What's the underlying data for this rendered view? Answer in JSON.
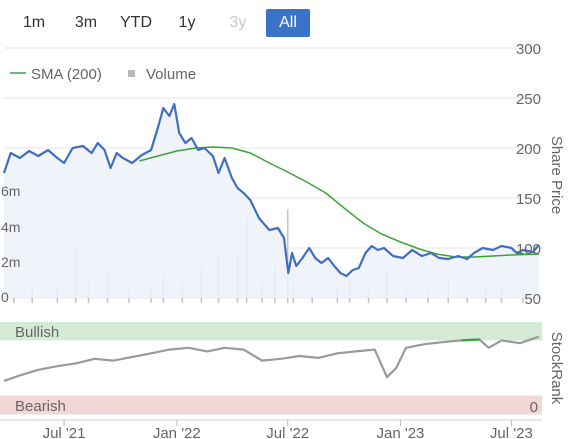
{
  "range_buttons": [
    {
      "label": "1m",
      "state": "normal"
    },
    {
      "label": "3m",
      "state": "normal"
    },
    {
      "label": "YTD",
      "state": "normal"
    },
    {
      "label": "1y",
      "state": "normal"
    },
    {
      "label": "3y",
      "state": "disabled"
    },
    {
      "label": "All",
      "state": "active"
    }
  ],
  "chart_data": [
    {
      "type": "line",
      "legend": [
        {
          "label": "SMA (200)",
          "color": "#3aa33a",
          "marker": "line"
        },
        {
          "label": "Volume",
          "color": "#b8b8c0",
          "marker": "square"
        }
      ],
      "y_right_label": "Share Price",
      "y_right_ticks": [
        50,
        100,
        150,
        200,
        250,
        300
      ],
      "ylim": [
        50,
        300
      ],
      "y_left_ticks": [
        "0",
        "2m",
        "4m",
        "6m"
      ],
      "volume_lim": [
        0,
        8000000
      ],
      "xlim": [
        "2021-03-25",
        "2023-08-20"
      ],
      "x_ticks": [
        {
          "date": "2021-07-01",
          "label": "Jul '21"
        },
        {
          "date": "2022-01-01",
          "label": "Jan '22"
        },
        {
          "date": "2022-07-01",
          "label": "Jul '22"
        },
        {
          "date": "2023-01-01",
          "label": "Jan '23"
        },
        {
          "date": "2023-07-01",
          "label": "Jul '23"
        }
      ],
      "series": [
        {
          "colors": {
            "line": "#3f6fc0",
            "fill": "#eef1fa"
          },
          "points": [
            [
              "2021-03-25",
              175
            ],
            [
              "2021-04-05",
              195
            ],
            [
              "2021-04-20",
              190
            ],
            [
              "2021-05-05",
              197
            ],
            [
              "2021-05-20",
              192
            ],
            [
              "2021-06-05",
              198
            ],
            [
              "2021-06-20",
              190
            ],
            [
              "2021-07-01",
              185
            ],
            [
              "2021-07-15",
              200
            ],
            [
              "2021-08-01",
              202
            ],
            [
              "2021-08-15",
              195
            ],
            [
              "2021-08-25",
              205
            ],
            [
              "2021-09-05",
              198
            ],
            [
              "2021-09-15",
              180
            ],
            [
              "2021-09-25",
              195
            ],
            [
              "2021-10-05",
              190
            ],
            [
              "2021-10-20",
              185
            ],
            [
              "2021-11-05",
              193
            ],
            [
              "2021-11-20",
              198
            ],
            [
              "2021-12-01",
              220
            ],
            [
              "2021-12-10",
              240
            ],
            [
              "2021-12-20",
              232
            ],
            [
              "2021-12-28",
              244
            ],
            [
              "2022-01-05",
              215
            ],
            [
              "2022-01-15",
              205
            ],
            [
              "2022-01-25",
              210
            ],
            [
              "2022-02-05",
              198
            ],
            [
              "2022-02-15",
              200
            ],
            [
              "2022-03-01",
              192
            ],
            [
              "2022-03-10",
              175
            ],
            [
              "2022-03-20",
              190
            ],
            [
              "2022-04-01",
              170
            ],
            [
              "2022-04-10",
              160
            ],
            [
              "2022-04-20",
              155
            ],
            [
              "2022-05-01",
              148
            ],
            [
              "2022-05-15",
              130
            ],
            [
              "2022-06-01",
              118
            ],
            [
              "2022-06-15",
              120
            ],
            [
              "2022-06-25",
              110
            ],
            [
              "2022-07-02",
              75
            ],
            [
              "2022-07-08",
              95
            ],
            [
              "2022-07-15",
              82
            ],
            [
              "2022-07-25",
              90
            ],
            [
              "2022-08-05",
              100
            ],
            [
              "2022-08-15",
              90
            ],
            [
              "2022-08-25",
              85
            ],
            [
              "2022-09-05",
              90
            ],
            [
              "2022-09-15",
              82
            ],
            [
              "2022-09-25",
              75
            ],
            [
              "2022-10-05",
              72
            ],
            [
              "2022-10-15",
              78
            ],
            [
              "2022-10-25",
              80
            ],
            [
              "2022-11-05",
              95
            ],
            [
              "2022-11-15",
              102
            ],
            [
              "2022-11-25",
              98
            ],
            [
              "2022-12-05",
              100
            ],
            [
              "2022-12-20",
              92
            ],
            [
              "2023-01-05",
              90
            ],
            [
              "2023-01-20",
              98
            ],
            [
              "2023-02-05",
              92
            ],
            [
              "2023-02-20",
              95
            ],
            [
              "2023-03-05",
              90
            ],
            [
              "2023-03-20",
              89
            ],
            [
              "2023-04-05",
              92
            ],
            [
              "2023-04-20",
              89
            ],
            [
              "2023-05-01",
              95
            ],
            [
              "2023-05-15",
              100
            ],
            [
              "2023-06-01",
              98
            ],
            [
              "2023-06-15",
              102
            ],
            [
              "2023-07-01",
              100
            ],
            [
              "2023-07-10",
              95
            ],
            [
              "2023-07-20",
              98
            ],
            [
              "2023-08-05",
              96
            ],
            [
              "2023-08-15",
              103
            ]
          ]
        },
        {
          "name": "SMA (200)",
          "colors": {
            "line": "#3aa33a"
          },
          "points": [
            [
              "2021-11-01",
              187
            ],
            [
              "2021-12-01",
              192
            ],
            [
              "2022-01-01",
              197
            ],
            [
              "2022-02-01",
              200
            ],
            [
              "2022-03-01",
              201
            ],
            [
              "2022-04-01",
              200
            ],
            [
              "2022-05-01",
              195
            ],
            [
              "2022-06-01",
              185
            ],
            [
              "2022-07-01",
              176
            ],
            [
              "2022-08-01",
              166
            ],
            [
              "2022-09-01",
              155
            ],
            [
              "2022-10-01",
              140
            ],
            [
              "2022-11-01",
              125
            ],
            [
              "2022-12-01",
              114
            ],
            [
              "2023-01-01",
              106
            ],
            [
              "2023-02-01",
              99
            ],
            [
              "2023-03-01",
              94
            ],
            [
              "2023-04-01",
              91
            ],
            [
              "2023-05-01",
              91
            ],
            [
              "2023-06-01",
              92
            ],
            [
              "2023-07-01",
              93
            ],
            [
              "2023-08-15",
              94
            ]
          ]
        }
      ],
      "volume": [
        [
          "2021-04-10",
          500000
        ],
        [
          "2021-05-10",
          1200000
        ],
        [
          "2021-06-20",
          900000
        ],
        [
          "2021-07-20",
          3500000
        ],
        [
          "2021-08-10",
          1500000
        ],
        [
          "2021-09-10",
          2000000
        ],
        [
          "2021-10-15",
          800000
        ],
        [
          "2021-11-20",
          1000000
        ],
        [
          "2021-12-10",
          1800000
        ],
        [
          "2022-01-10",
          1400000
        ],
        [
          "2022-02-10",
          2200000
        ],
        [
          "2022-03-10",
          3000000
        ],
        [
          "2022-04-10",
          3200000
        ],
        [
          "2022-04-25",
          5500000
        ],
        [
          "2022-05-20",
          1300000
        ],
        [
          "2022-06-10",
          2300000
        ],
        [
          "2022-07-01",
          6000000
        ],
        [
          "2022-07-10",
          1200000
        ],
        [
          "2022-08-10",
          700000
        ],
        [
          "2022-09-20",
          900000
        ],
        [
          "2022-10-10",
          1500000
        ],
        [
          "2022-11-10",
          1100000
        ],
        [
          "2022-12-10",
          2000000
        ],
        [
          "2023-01-10",
          800000
        ],
        [
          "2023-02-15",
          700000
        ],
        [
          "2023-03-20",
          1500000
        ],
        [
          "2023-04-20",
          600000
        ],
        [
          "2023-05-20",
          1200000
        ],
        [
          "2023-06-15",
          900000
        ],
        [
          "2023-07-20",
          1000000
        ]
      ]
    },
    {
      "type": "line",
      "y_right_label": "StockRank",
      "y_right_tick": 0,
      "ylim": [
        0,
        100
      ],
      "bands": [
        {
          "label": "Bullish",
          "from": 80,
          "to": 100,
          "color": "#d3ebd5",
          "text_color": "#2f7d34"
        },
        {
          "label": "Bearish",
          "from": 0,
          "to": 20,
          "color": "#f3d7d7",
          "text_color": "#b03a3a"
        }
      ],
      "series": [
        {
          "colors": {
            "line": "#9a9a9a",
            "high_line": "#3aa33a"
          },
          "highlight_above": 80,
          "points": [
            [
              "2021-03-25",
              36
            ],
            [
              "2021-04-20",
              42
            ],
            [
              "2021-05-20",
              48
            ],
            [
              "2021-06-20",
              52
            ],
            [
              "2021-07-20",
              55
            ],
            [
              "2021-08-20",
              60
            ],
            [
              "2021-09-20",
              58
            ],
            [
              "2021-10-20",
              62
            ],
            [
              "2021-11-20",
              66
            ],
            [
              "2021-12-20",
              70
            ],
            [
              "2022-01-20",
              72
            ],
            [
              "2022-02-20",
              68
            ],
            [
              "2022-03-20",
              72
            ],
            [
              "2022-04-20",
              70
            ],
            [
              "2022-05-20",
              58
            ],
            [
              "2022-06-20",
              60
            ],
            [
              "2022-07-20",
              63
            ],
            [
              "2022-08-20",
              61
            ],
            [
              "2022-09-20",
              66
            ],
            [
              "2022-10-20",
              68
            ],
            [
              "2022-11-20",
              70
            ],
            [
              "2022-12-10",
              40
            ],
            [
              "2022-12-25",
              50
            ],
            [
              "2023-01-10",
              72
            ],
            [
              "2023-02-10",
              76
            ],
            [
              "2023-03-10",
              78
            ],
            [
              "2023-04-10",
              80
            ],
            [
              "2023-05-10",
              81
            ],
            [
              "2023-05-25",
              72
            ],
            [
              "2023-06-15",
              80
            ],
            [
              "2023-07-15",
              77
            ],
            [
              "2023-08-15",
              84
            ]
          ]
        }
      ]
    }
  ]
}
